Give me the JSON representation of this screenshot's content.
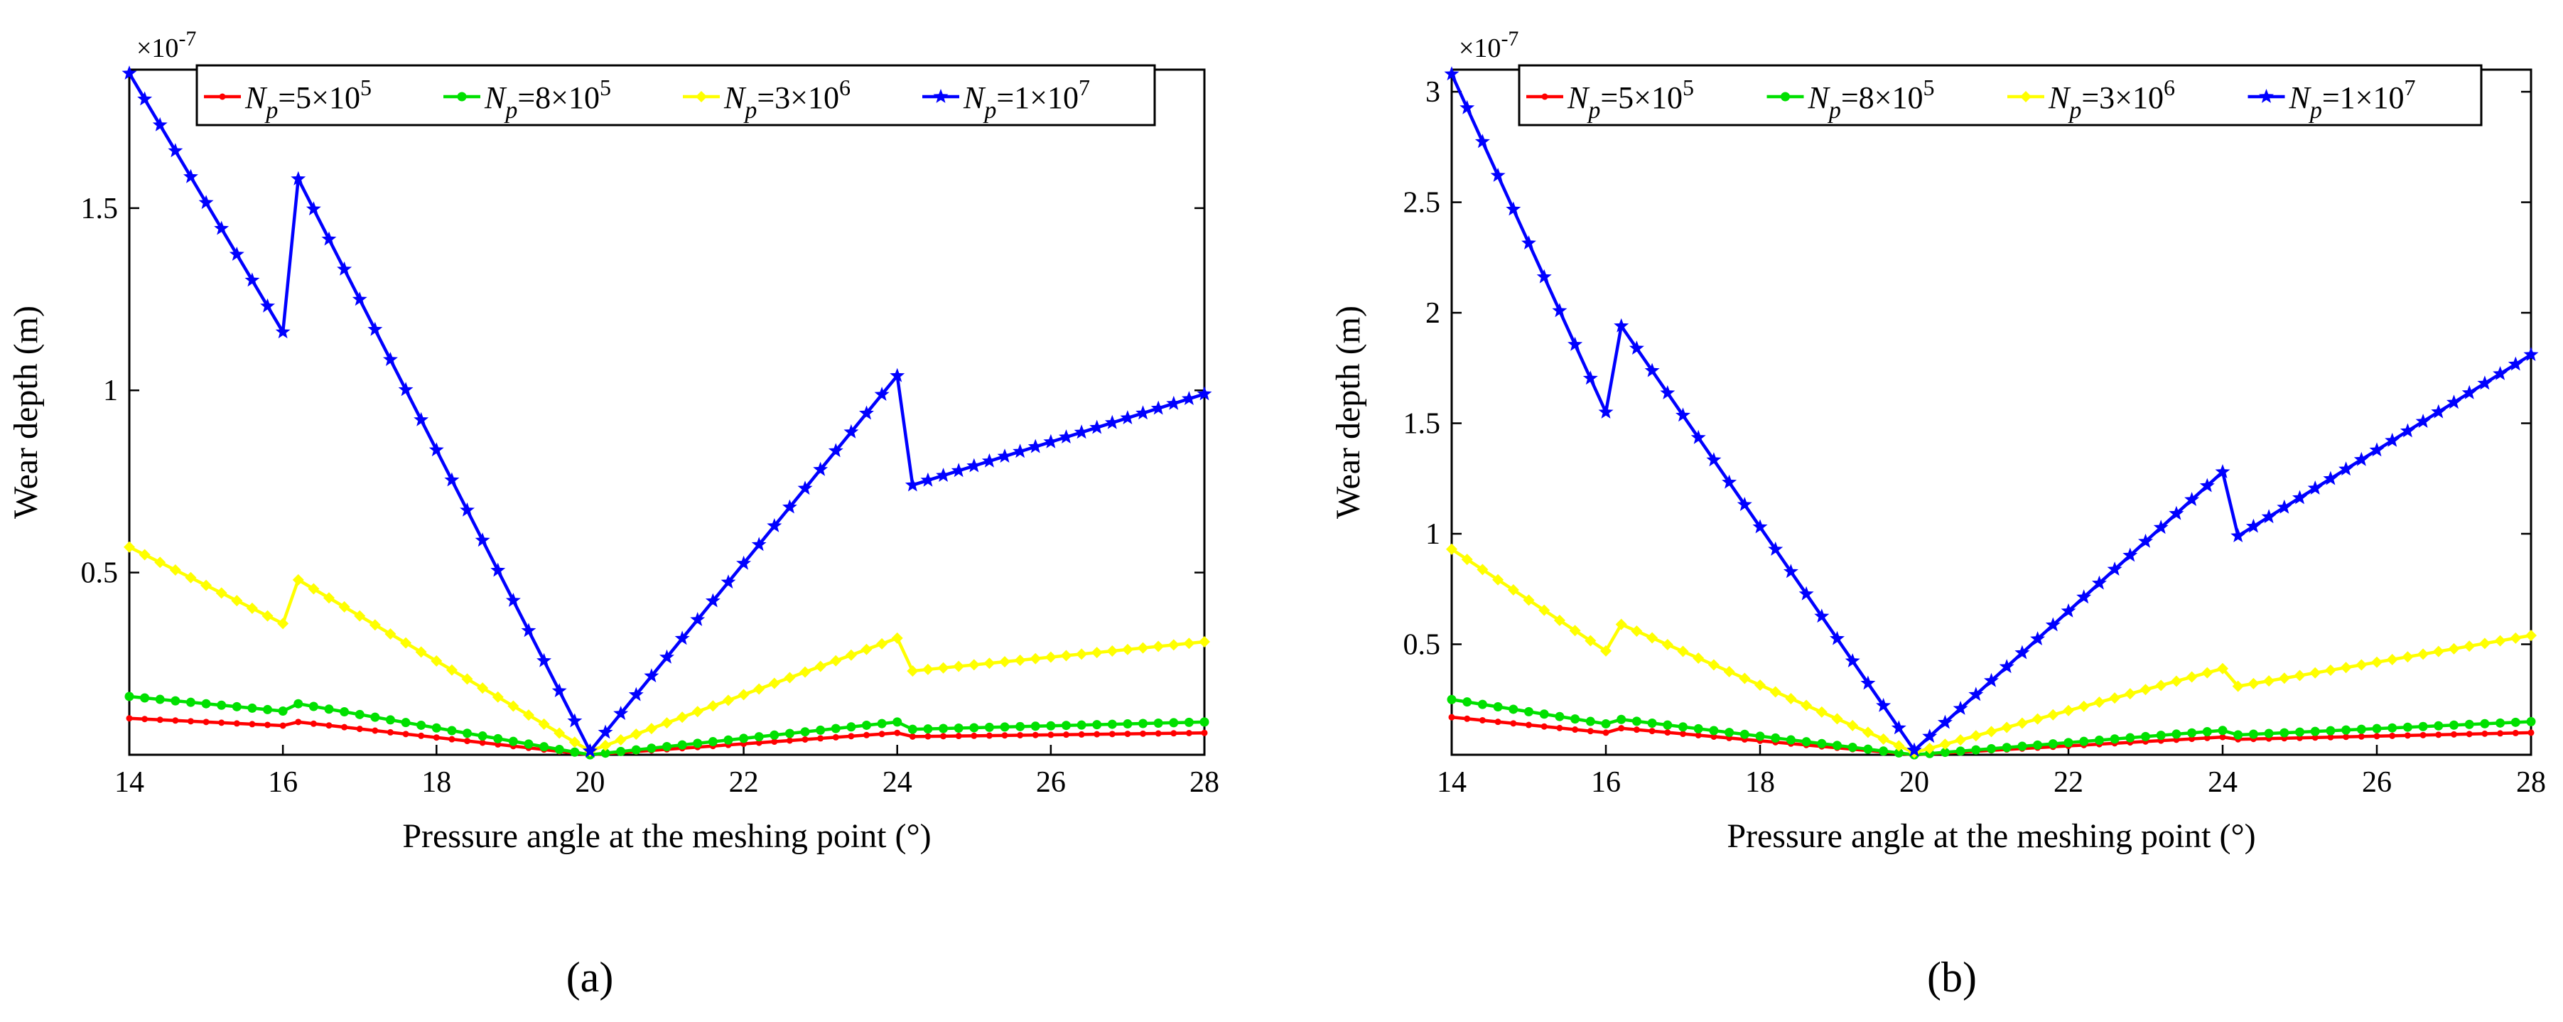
{
  "figure": {
    "subplot_labels": [
      "(a)",
      "(b)"
    ]
  },
  "legend_entries": [
    {
      "sym": "N",
      "sub": "p",
      "eq": "=5×10",
      "sup": "5",
      "color": "#ff0000",
      "marker": "dot"
    },
    {
      "sym": "N",
      "sub": "p",
      "eq": "=8×10",
      "sup": "5",
      "color": "#00e000",
      "marker": "circle"
    },
    {
      "sym": "N",
      "sub": "p",
      "eq": "=3×10",
      "sup": "6",
      "color": "#ffff00",
      "marker": "diamond"
    },
    {
      "sym": "N",
      "sub": "p",
      "eq": "=1×10",
      "sup": "7",
      "color": "#0000ff",
      "marker": "star"
    }
  ],
  "chart_data": [
    {
      "type": "line",
      "panel": "(a)",
      "title": "",
      "xlabel": "Pressure angle at the meshing point (°)",
      "ylabel": "Wear depth (m)",
      "xlim": [
        14,
        28
      ],
      "ylim": [
        0,
        1.88
      ],
      "y_exponent": "×10",
      "y_exponent_power": "-7",
      "xticks": [
        14,
        16,
        18,
        20,
        22,
        24,
        26,
        28
      ],
      "xtick_labels": [
        "14",
        "16",
        "18",
        "20",
        "22",
        "24",
        "26",
        "28"
      ],
      "yticks": [
        0.5,
        1,
        1.5
      ],
      "ytick_labels": [
        "0.5",
        "1",
        "1.5"
      ],
      "grid": false,
      "legend_position": "top",
      "series": [
        {
          "name": "Np=5×10^5",
          "color": "#ff0000",
          "marker": "dot",
          "segments": [
            [
              [
                14,
                0.1
              ],
              [
                16,
                0.08
              ]
            ],
            [
              [
                16.2,
                0.09
              ],
              [
                20,
                0.0
              ]
            ],
            [
              [
                20,
                0.0
              ],
              [
                24,
                0.06
              ]
            ],
            [
              [
                24.2,
                0.05
              ],
              [
                28,
                0.06
              ]
            ]
          ]
        },
        {
          "name": "Np=8×10^5",
          "color": "#00e000",
          "marker": "circle",
          "segments": [
            [
              [
                14,
                0.16
              ],
              [
                16,
                0.12
              ]
            ],
            [
              [
                16.2,
                0.14
              ],
              [
                20,
                0.0
              ]
            ],
            [
              [
                20,
                0.0
              ],
              [
                24,
                0.09
              ]
            ],
            [
              [
                24.2,
                0.07
              ],
              [
                28,
                0.09
              ]
            ]
          ]
        },
        {
          "name": "Np=3×10^6",
          "color": "#ffff00",
          "marker": "diamond",
          "segments": [
            [
              [
                14,
                0.57
              ],
              [
                16,
                0.36
              ]
            ],
            [
              [
                16.2,
                0.48
              ],
              [
                20,
                0.01
              ]
            ],
            [
              [
                20,
                0.01
              ],
              [
                24,
                0.32
              ]
            ],
            [
              [
                24.2,
                0.23
              ],
              [
                28,
                0.31
              ]
            ]
          ]
        },
        {
          "name": "Np=1×10^7",
          "color": "#0000ff",
          "marker": "star",
          "segments": [
            [
              [
                14,
                1.87
              ],
              [
                16,
                1.16
              ]
            ],
            [
              [
                16.2,
                1.58
              ],
              [
                20,
                0.01
              ]
            ],
            [
              [
                20,
                0.01
              ],
              [
                24,
                1.04
              ]
            ],
            [
              [
                24.2,
                0.74
              ],
              [
                28,
                0.99
              ]
            ]
          ]
        }
      ]
    },
    {
      "type": "line",
      "panel": "(b)",
      "title": "",
      "xlabel": "Pressure angle at the meshing point (°)",
      "ylabel": "Wear depth (m)",
      "xlim": [
        14,
        28
      ],
      "ylim": [
        0,
        3.1
      ],
      "y_exponent": "×10",
      "y_exponent_power": "-7",
      "xticks": [
        14,
        16,
        18,
        20,
        22,
        24,
        26,
        28
      ],
      "xtick_labels": [
        "14",
        "16",
        "18",
        "20",
        "22",
        "24",
        "26",
        "28"
      ],
      "yticks": [
        0.5,
        1,
        1.5,
        2,
        2.5,
        3
      ],
      "ytick_labels": [
        "0.5",
        "1",
        "1.5",
        "2",
        "2.5",
        "3"
      ],
      "grid": false,
      "legend_position": "top",
      "series": [
        {
          "name": "Np=5×10^5",
          "color": "#ff0000",
          "marker": "dot",
          "segments": [
            [
              [
                14,
                0.17
              ],
              [
                16,
                0.1
              ]
            ],
            [
              [
                16.2,
                0.12
              ],
              [
                20,
                0.0
              ]
            ],
            [
              [
                20,
                0.0
              ],
              [
                24,
                0.08
              ]
            ],
            [
              [
                24.2,
                0.07
              ],
              [
                28,
                0.1
              ]
            ]
          ]
        },
        {
          "name": "Np=8×10^5",
          "color": "#00e000",
          "marker": "circle",
          "segments": [
            [
              [
                14,
                0.25
              ],
              [
                16,
                0.14
              ]
            ],
            [
              [
                16.2,
                0.16
              ],
              [
                20,
                0.0
              ]
            ],
            [
              [
                20,
                0.0
              ],
              [
                24,
                0.11
              ]
            ],
            [
              [
                24.2,
                0.09
              ],
              [
                28,
                0.15
              ]
            ]
          ]
        },
        {
          "name": "Np=3×10^6",
          "color": "#ffff00",
          "marker": "diamond",
          "segments": [
            [
              [
                14,
                0.93
              ],
              [
                16,
                0.47
              ]
            ],
            [
              [
                16.2,
                0.59
              ],
              [
                20,
                0.01
              ]
            ],
            [
              [
                20,
                0.01
              ],
              [
                24,
                0.39
              ]
            ],
            [
              [
                24.2,
                0.31
              ],
              [
                28,
                0.54
              ]
            ]
          ]
        },
        {
          "name": "Np=1×10^7",
          "color": "#0000ff",
          "marker": "star",
          "segments": [
            [
              [
                14,
                3.08
              ],
              [
                16,
                1.55
              ]
            ],
            [
              [
                16.2,
                1.94
              ],
              [
                20,
                0.02
              ]
            ],
            [
              [
                20,
                0.02
              ],
              [
                24,
                1.28
              ]
            ],
            [
              [
                24.2,
                0.99
              ],
              [
                28,
                1.81
              ]
            ]
          ]
        }
      ]
    }
  ]
}
